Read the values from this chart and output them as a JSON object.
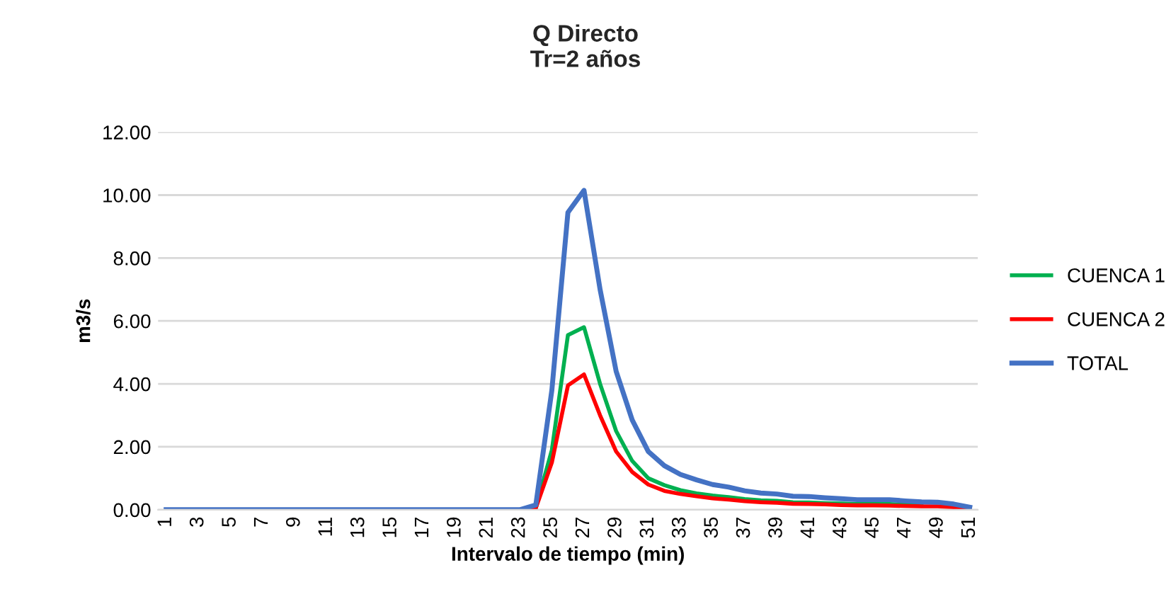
{
  "chart_data": {
    "type": "line",
    "title": "Q Directo\nTr=2 años",
    "xlabel": "Intervalo de tiempo (min)",
    "ylabel": "m3/s",
    "categories": [
      "1",
      null,
      "3",
      null,
      "5",
      null,
      "7",
      null,
      "9",
      null,
      "11",
      null,
      "13",
      null,
      "15",
      null,
      "17",
      null,
      "19",
      null,
      "21",
      null,
      "23",
      null,
      "25",
      null,
      "27",
      null,
      "29",
      null,
      "31",
      null,
      "33",
      null,
      "35",
      null,
      "37",
      null,
      "39",
      null,
      "41",
      null,
      "43",
      null,
      "45",
      null,
      "47",
      null,
      "49",
      null,
      "51"
    ],
    "series": [
      {
        "name": "CUENCA 1",
        "color": "#00b050",
        "values": [
          null,
          null,
          null,
          null,
          null,
          null,
          null,
          null,
          null,
          null,
          null,
          null,
          null,
          null,
          null,
          null,
          null,
          null,
          null,
          null,
          null,
          null,
          null,
          0.05,
          1.9,
          5.55,
          5.8,
          4.0,
          2.5,
          1.55,
          1.0,
          0.78,
          0.62,
          0.52,
          0.45,
          0.4,
          0.34,
          0.3,
          0.28,
          0.24,
          0.23,
          0.21,
          0.2,
          0.18,
          0.18,
          0.18,
          0.16,
          0.14,
          null,
          null,
          null
        ]
      },
      {
        "name": "CUENCA 2",
        "color": "#ff0000",
        "values": [
          null,
          null,
          null,
          null,
          null,
          null,
          null,
          null,
          null,
          null,
          null,
          null,
          null,
          null,
          null,
          null,
          null,
          null,
          null,
          null,
          null,
          null,
          0,
          0.05,
          1.5,
          3.95,
          4.3,
          3.0,
          1.85,
          1.2,
          0.8,
          0.6,
          0.5,
          0.43,
          0.36,
          0.32,
          0.27,
          0.24,
          0.22,
          0.19,
          0.18,
          0.17,
          0.15,
          0.14,
          0.14,
          0.13,
          0.12,
          0.11,
          0.11,
          0.08,
          0.03
        ]
      },
      {
        "name": "TOTAL",
        "color": "#4472c4",
        "values": [
          0,
          0,
          0,
          0,
          0,
          0,
          0,
          0,
          0,
          0,
          0,
          0,
          0,
          0,
          0,
          0,
          0,
          0,
          0,
          0,
          0,
          0,
          0,
          0.15,
          3.8,
          9.45,
          10.15,
          7.0,
          4.4,
          2.85,
          1.85,
          1.4,
          1.12,
          0.95,
          0.8,
          0.72,
          0.6,
          0.53,
          0.5,
          0.43,
          0.42,
          0.38,
          0.35,
          0.32,
          0.32,
          0.32,
          0.28,
          0.25,
          0.24,
          0.18,
          0.08
        ]
      }
    ],
    "ylim": [
      0,
      12
    ],
    "yticks": [
      {
        "value": 0,
        "label": "0.00"
      },
      {
        "value": 2,
        "label": "2.00"
      },
      {
        "value": 4,
        "label": "4.00"
      },
      {
        "value": 6,
        "label": "6.00"
      },
      {
        "value": 8,
        "label": "8.00"
      },
      {
        "value": 10,
        "label": "10.00"
      },
      {
        "value": 12,
        "label": "12.00"
      }
    ],
    "grid": "y",
    "legend": "right",
    "marker": "none",
    "line_style": "solid"
  }
}
